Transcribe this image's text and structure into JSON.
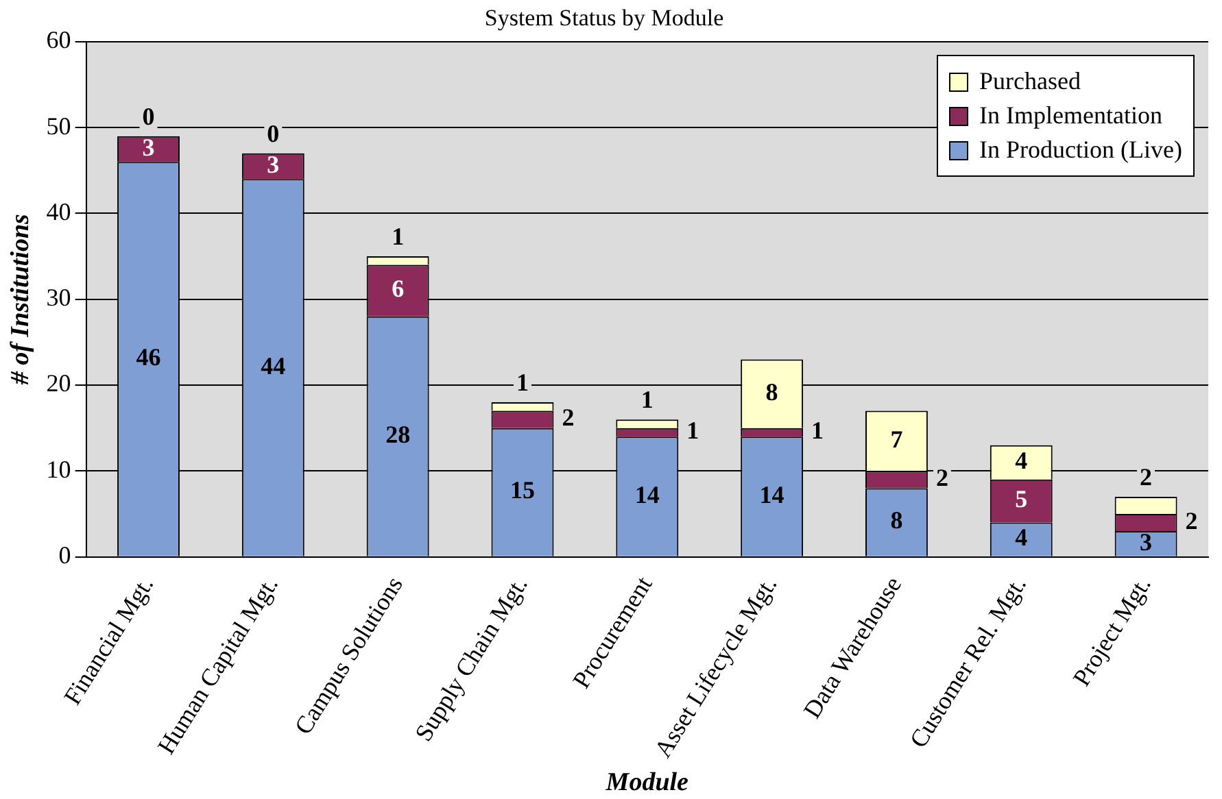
{
  "chart_data": {
    "type": "bar",
    "stacked": true,
    "title": "System Status by Module",
    "xlabel": "Module",
    "ylabel": "# of Institutions",
    "categories": [
      "Financial Mgt.",
      "Human Capital Mgt.",
      "Campus Solutions",
      "Supply Chain Mgt.",
      "Procurement",
      "Asset Lifecycle Mgt.",
      "Data Warehouse",
      "Customer Rel. Mgt.",
      "Project Mgt."
    ],
    "series": [
      {
        "name": "In Production (Live)",
        "color": "#7f9fd4",
        "values": [
          46,
          44,
          28,
          15,
          14,
          14,
          8,
          4,
          3
        ]
      },
      {
        "name": "In Implementation",
        "color": "#8c2a5a",
        "values": [
          3,
          3,
          6,
          2,
          1,
          1,
          2,
          5,
          2
        ]
      },
      {
        "name": "Purchased",
        "color": "#ffffcc",
        "values": [
          0,
          0,
          1,
          1,
          1,
          8,
          7,
          4,
          2
        ]
      }
    ],
    "ylim": [
      0,
      60
    ],
    "yticks": [
      0,
      10,
      20,
      30,
      40,
      50,
      60
    ],
    "grid": "y",
    "legend": "top right",
    "data_labels": true
  }
}
